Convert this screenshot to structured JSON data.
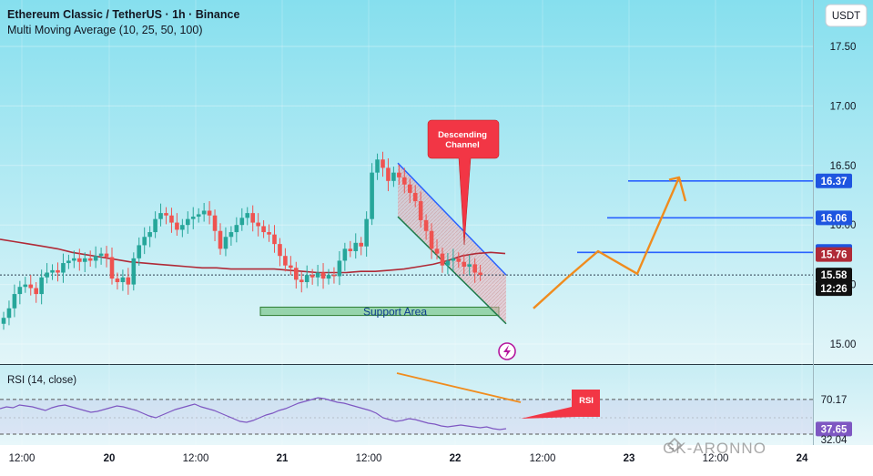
{
  "header": {
    "title": "Ethereum Classic / TetherUS · 1h · Binance",
    "indicator": "Multi Moving Average (10, 25, 50, 100)"
  },
  "currency_button": "USDT",
  "annotations": {
    "descending_channel": "Descending\nChannel",
    "support_area": "Support Area",
    "rsi_callout": "RSI"
  },
  "rsi_panel": {
    "label": "RSI (14, close)",
    "levels": [
      70.17,
      37.65,
      32.04
    ],
    "level_labels": [
      "70.17",
      "37.65",
      "32.04"
    ]
  },
  "price_tags": [
    {
      "label": "16.37",
      "color": "#1e55e0",
      "kind": "target"
    },
    {
      "label": "16.06",
      "color": "#1e55e0",
      "kind": "target"
    },
    {
      "label": "15.77",
      "color": "#1e55e0",
      "kind": "target"
    },
    {
      "label": "15.76",
      "color": "#b02a37",
      "kind": "ma"
    },
    {
      "label": "15.58",
      "color": "#111111",
      "kind": "last"
    },
    {
      "label": "12:26",
      "color": "#111111",
      "kind": "countdown"
    }
  ],
  "watermark": "GK-ARONNO",
  "colors": {
    "bull": "#26a69a",
    "bear": "#ef5350",
    "ma": "#b02a37",
    "channel": "#2962ff",
    "projection": "#f08c1e",
    "callout": "#f23645",
    "rsi_line": "#7e57c2",
    "background_top": "#8ce0ee",
    "background_bottom": "#d6f1f6"
  },
  "chart_data": {
    "type": "candlestick",
    "price_axis": {
      "ticks": [
        15.0,
        15.5,
        16.0,
        16.5,
        17.0,
        17.5
      ],
      "tick_labels": [
        "15.00",
        "15.50",
        "16.00",
        "16.50",
        "17.00",
        "17.50"
      ],
      "ylim": [
        14.9,
        18.0
      ]
    },
    "time_axis": {
      "tick_labels": [
        "12:00",
        "20",
        "12:00",
        "21",
        "12:00",
        "22",
        "12:00",
        "23",
        "12:00",
        "24"
      ]
    },
    "candles_close": [
      15.22,
      15.3,
      15.42,
      15.48,
      15.5,
      15.47,
      15.42,
      15.56,
      15.6,
      15.62,
      15.6,
      15.68,
      15.7,
      15.72,
      15.69,
      15.72,
      15.7,
      15.74,
      15.76,
      15.73,
      15.55,
      15.52,
      15.56,
      15.5,
      15.72,
      15.83,
      15.9,
      15.94,
      16.05,
      16.1,
      16.08,
      16.02,
      15.96,
      16.0,
      16.05,
      16.07,
      16.09,
      16.12,
      16.08,
      15.95,
      15.8,
      15.9,
      15.94,
      16.0,
      16.06,
      16.1,
      16.02,
      15.99,
      15.94,
      15.92,
      15.84,
      15.74,
      15.66,
      15.64,
      15.54,
      15.52,
      15.58,
      15.56,
      15.6,
      15.55,
      15.58,
      15.57,
      15.7,
      15.8,
      15.78,
      15.85,
      15.82,
      16.05,
      16.44,
      16.55,
      16.48,
      16.37,
      16.44,
      16.4,
      16.34,
      16.27,
      16.2,
      16.04,
      15.95,
      15.8,
      15.76,
      15.66,
      15.7,
      15.72,
      15.69,
      15.65,
      15.67,
      15.6,
      15.58
    ],
    "moving_average": [
      15.88,
      15.86,
      15.84,
      15.82,
      15.8,
      15.77,
      15.75,
      15.73,
      15.71,
      15.69,
      15.68,
      15.67,
      15.66,
      15.65,
      15.64,
      15.64,
      15.63,
      15.63,
      15.63,
      15.63,
      15.62,
      15.61,
      15.6,
      15.6,
      15.6,
      15.61,
      15.61,
      15.62,
      15.63,
      15.65,
      15.67,
      15.7,
      15.74,
      15.76,
      15.77,
      15.76
    ],
    "descending_channel": {
      "upper": [
        [
          16.52,
          0
        ],
        [
          15.58,
          1
        ]
      ],
      "lower": [
        [
          16.07,
          0
        ],
        [
          15.17,
          1
        ]
      ]
    },
    "support_area": [
      15.24,
      15.31
    ],
    "target_levels": [
      16.37,
      16.06,
      15.77
    ],
    "projection_path": [
      15.3,
      15.55,
      15.78,
      15.59,
      16.4,
      16.2
    ],
    "rsi": {
      "values": [
        60,
        62,
        61,
        64,
        63,
        62,
        60,
        58,
        61,
        63,
        64,
        62,
        60,
        58,
        56,
        57,
        59,
        61,
        63,
        62,
        60,
        58,
        55,
        52,
        50,
        53,
        56,
        59,
        61,
        63,
        65,
        62,
        60,
        58,
        55,
        52,
        49,
        46,
        45,
        47,
        50,
        53,
        55,
        58,
        60,
        63,
        66,
        68,
        70,
        72,
        71,
        69,
        67,
        66,
        64,
        62,
        60,
        58,
        55,
        50,
        48,
        46,
        47,
        49,
        48,
        46,
        44,
        43,
        41,
        40,
        41,
        42,
        41,
        40,
        39,
        40,
        38,
        37,
        38
      ],
      "levels": [
        70.17,
        37.65,
        32.04
      ]
    }
  }
}
